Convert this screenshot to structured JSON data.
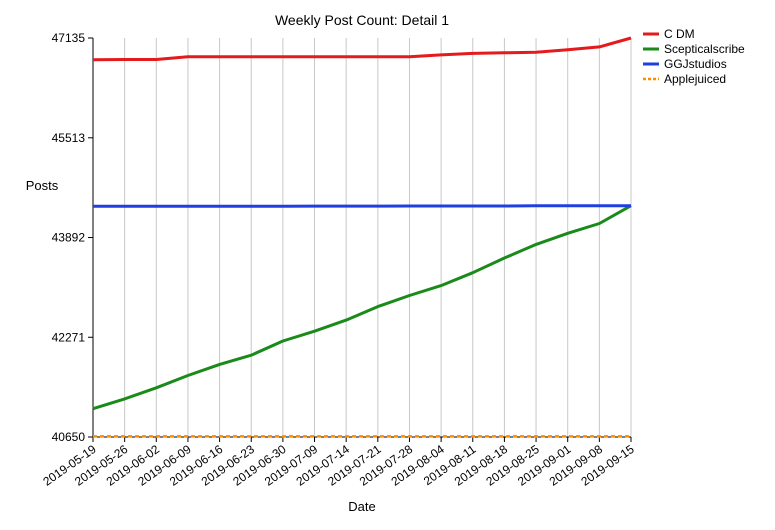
{
  "chart_data": {
    "type": "line",
    "title": "Weekly Post Count: Detail 1",
    "xlabel": "Date",
    "ylabel": "Posts",
    "x": [
      "2019-05-19",
      "2019-05-26",
      "2019-06-02",
      "2019-06-09",
      "2019-06-16",
      "2019-06-23",
      "2019-06-30",
      "2019-07-09",
      "2019-07-14",
      "2019-07-21",
      "2019-07-28",
      "2019-08-04",
      "2019-08-11",
      "2019-08-18",
      "2019-08-25",
      "2019-09-01",
      "2019-09-08",
      "2019-09-15"
    ],
    "yticks": [
      40650,
      42271,
      43892,
      45513,
      47135
    ],
    "ylim": [
      40650,
      47135
    ],
    "grid": {
      "vertical": true,
      "horizontal": false
    },
    "legend_position": "top-right",
    "series": [
      {
        "name": "C DM",
        "color": "#e41a1c",
        "dash": "solid",
        "values": [
          46780,
          46785,
          46785,
          46830,
          46830,
          46830,
          46830,
          46830,
          46830,
          46830,
          46830,
          46860,
          46885,
          46895,
          46905,
          46945,
          46990,
          47135
        ]
      },
      {
        "name": "Scepticalscribe",
        "color": "#1a8a1a",
        "dash": "solid",
        "values": [
          41110,
          41270,
          41450,
          41650,
          41830,
          41980,
          42210,
          42370,
          42550,
          42770,
          42950,
          43110,
          43320,
          43560,
          43780,
          43960,
          44120,
          44410
        ]
      },
      {
        "name": "GGJstudios",
        "color": "#1f3fe0",
        "dash": "solid",
        "values": [
          44400,
          44400,
          44400,
          44400,
          44400,
          44400,
          44400,
          44403,
          44403,
          44403,
          44405,
          44405,
          44405,
          44405,
          44407,
          44407,
          44410,
          44410
        ]
      },
      {
        "name": "Applejuiced",
        "color": "#ff8c00",
        "dash": "dashed",
        "values": [
          40660,
          40660,
          40660,
          40660,
          40660,
          40660,
          40660,
          40660,
          40660,
          40660,
          40660,
          40660,
          40660,
          40660,
          40660,
          40660,
          40660,
          40660
        ]
      }
    ]
  }
}
